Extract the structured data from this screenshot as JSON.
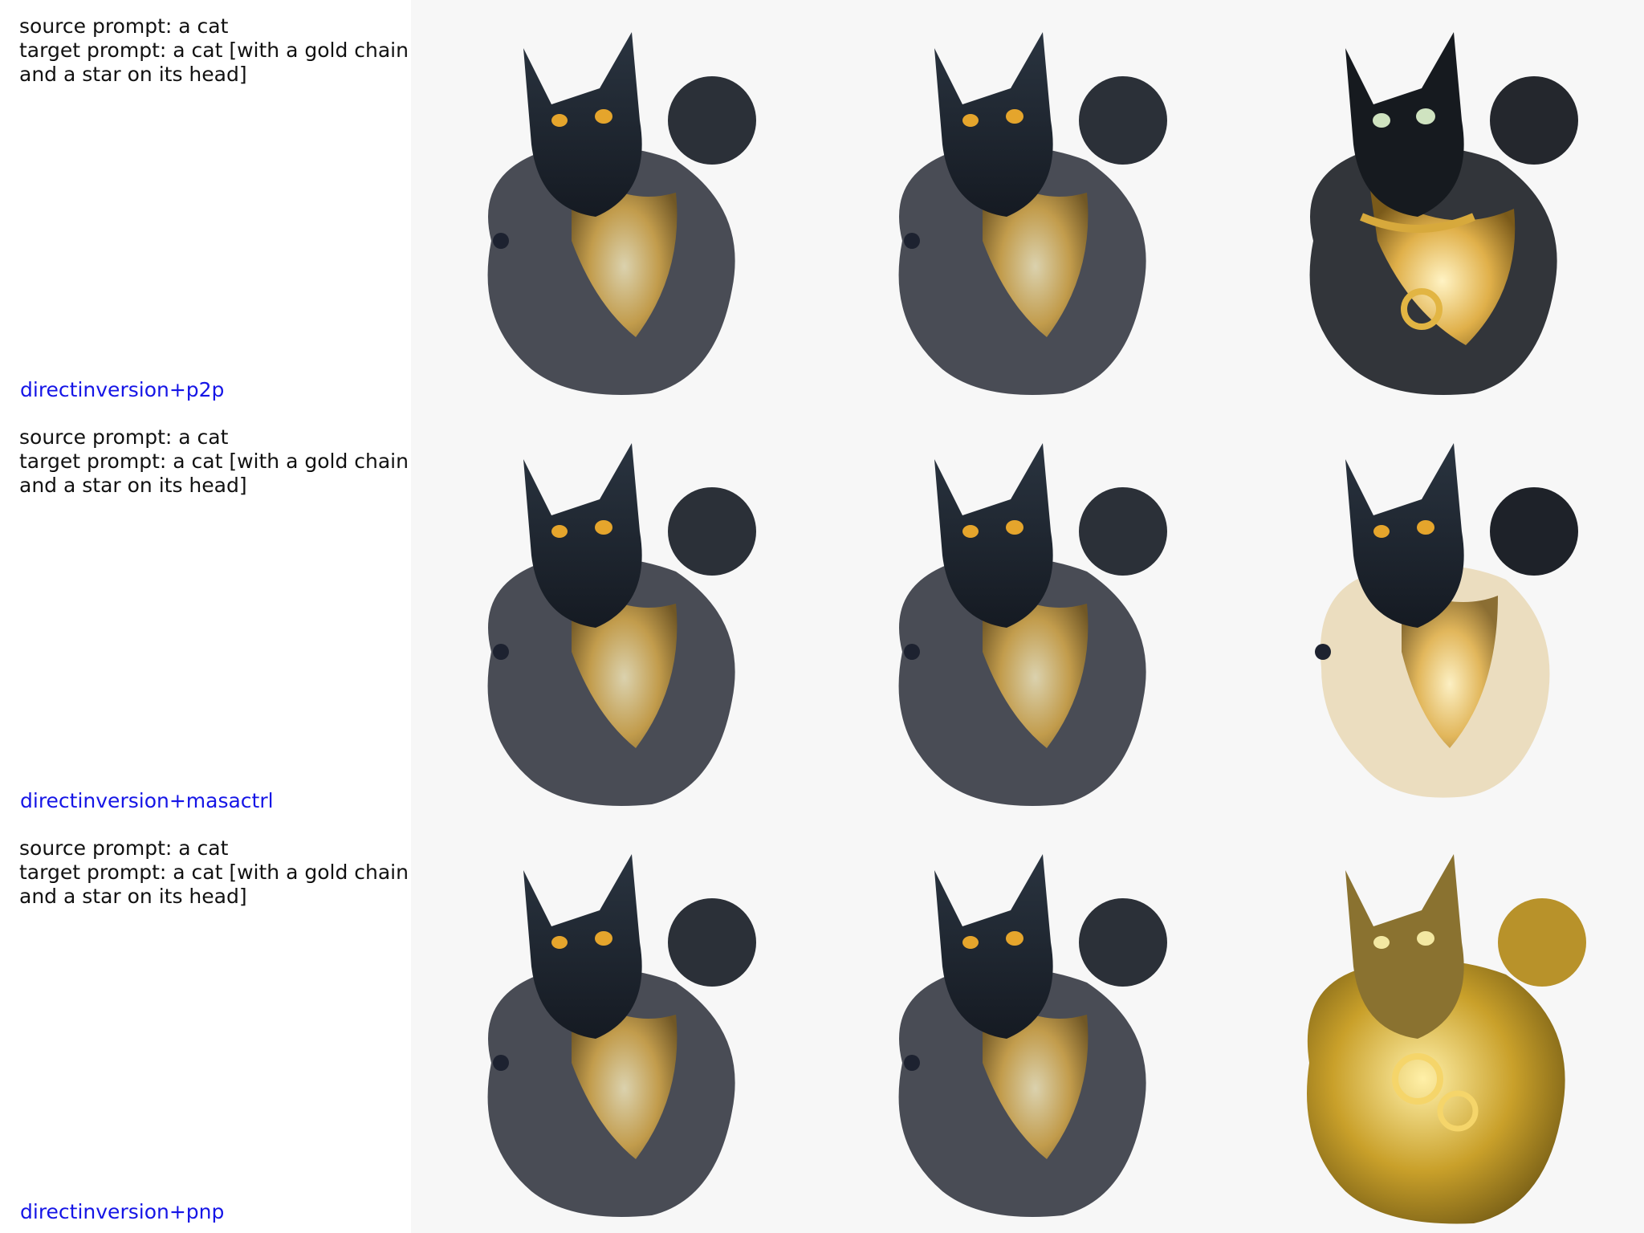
{
  "rows": [
    {
      "source_prompt": "source prompt: a cat",
      "target_prompt_line1": "target prompt: a cat [with a gold chain",
      "target_prompt_line2": "and a star on its head]",
      "method": "directinversion+p2p",
      "images": [
        "source-cat",
        "reconstructed-cat",
        "edited-cat-gold-collar"
      ]
    },
    {
      "source_prompt": "source prompt: a cat",
      "target_prompt_line1": "target prompt: a cat [with a gold chain",
      "target_prompt_line2": "and a star on its head]",
      "method": "directinversion+masactrl",
      "images": [
        "source-cat",
        "reconstructed-cat",
        "edited-cat-dark"
      ]
    },
    {
      "source_prompt": "source prompt: a cat",
      "target_prompt_line1": "target prompt: a cat [with a gold chain",
      "target_prompt_line2": "and a star on its head]",
      "method": "directinversion+pnp",
      "images": [
        "source-cat",
        "reconstructed-cat",
        "edited-cat-all-gold"
      ]
    }
  ],
  "colors": {
    "method_label": "#1515e6",
    "gold": "#d9a93a",
    "dark_fur": "#1f2630"
  }
}
